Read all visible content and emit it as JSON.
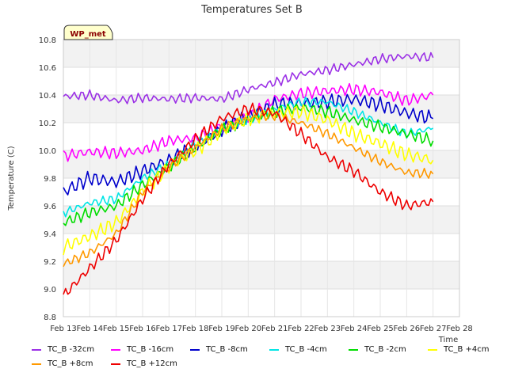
{
  "chart_data": {
    "type": "line",
    "title": "Temperatures Set B",
    "xlabel": "Time",
    "ylabel": "Temperature (C)",
    "badge": "WP_met",
    "x_ticks": [
      "Feb 13",
      "Feb 14",
      "Feb 15",
      "Feb 16",
      "Feb 17",
      "Feb 18",
      "Feb 19",
      "Feb 20",
      "Feb 21",
      "Feb 22",
      "Feb 23",
      "Feb 24",
      "Feb 25",
      "Feb 26",
      "Feb 27",
      "Feb 28"
    ],
    "y_ticks": [
      "8.8",
      "9.0",
      "9.2",
      "9.4",
      "9.6",
      "9.8",
      "10.0",
      "10.2",
      "10.4",
      "10.6",
      "10.8"
    ],
    "xlim": [
      "Feb 13",
      "Feb 28"
    ],
    "ylim": [
      8.8,
      10.8
    ],
    "grid": true,
    "banded_background": true,
    "legend_position": "bottom",
    "x": [
      "Feb 13",
      "Feb 14",
      "Feb 15",
      "Feb 16",
      "Feb 17",
      "Feb 18",
      "Feb 19",
      "Feb 20",
      "Feb 21",
      "Feb 22",
      "Feb 23",
      "Feb 24",
      "Feb 25",
      "Feb 26",
      "Feb 27"
    ],
    "series": [
      {
        "name": "TC_B -32cm",
        "color": "#9b30e6",
        "values": [
          10.39,
          10.4,
          10.36,
          10.38,
          10.37,
          10.38,
          10.37,
          10.44,
          10.49,
          10.55,
          10.58,
          10.62,
          10.66,
          10.68,
          10.67
        ]
      },
      {
        "name": "TC_B -16cm",
        "color": "#ff00ff",
        "values": [
          9.96,
          9.99,
          9.98,
          10.0,
          10.07,
          10.09,
          10.17,
          10.24,
          10.37,
          10.41,
          10.43,
          10.44,
          10.42,
          10.36,
          10.4
        ]
      },
      {
        "name": "TC_B -8cm",
        "color": "#0000cc",
        "values": [
          9.7,
          9.8,
          9.77,
          9.85,
          9.93,
          10.03,
          10.15,
          10.25,
          10.33,
          10.34,
          10.35,
          10.37,
          10.33,
          10.27,
          10.23
        ]
      },
      {
        "name": "TC_B -4cm",
        "color": "#00e5e5",
        "values": [
          9.55,
          9.62,
          9.65,
          9.8,
          9.9,
          10.05,
          10.15,
          10.22,
          10.3,
          10.35,
          10.35,
          10.28,
          10.2,
          10.12,
          10.16
        ]
      },
      {
        "name": "TC_B -2cm",
        "color": "#00dd00",
        "values": [
          9.48,
          9.55,
          9.6,
          9.75,
          9.88,
          10.02,
          10.15,
          10.22,
          10.28,
          10.31,
          10.28,
          10.22,
          10.17,
          10.12,
          10.07
        ]
      },
      {
        "name": "TC_B +4cm",
        "color": "#ffff00",
        "values": [
          9.3,
          9.38,
          9.48,
          9.7,
          9.88,
          10.0,
          10.14,
          10.23,
          10.27,
          10.28,
          10.22,
          10.12,
          10.05,
          9.97,
          9.93
        ]
      },
      {
        "name": "TC_B +8cm",
        "color": "#ff9900",
        "values": [
          9.18,
          9.26,
          9.4,
          9.7,
          9.88,
          10.02,
          10.16,
          10.23,
          10.25,
          10.2,
          10.12,
          10.02,
          9.92,
          9.84,
          9.83
        ]
      },
      {
        "name": "TC_B +12cm",
        "color": "#ee0000",
        "values": [
          8.95,
          9.15,
          9.35,
          9.65,
          9.9,
          10.08,
          10.23,
          10.3,
          10.27,
          10.12,
          9.95,
          9.85,
          9.7,
          9.6,
          9.63
        ]
      }
    ]
  }
}
